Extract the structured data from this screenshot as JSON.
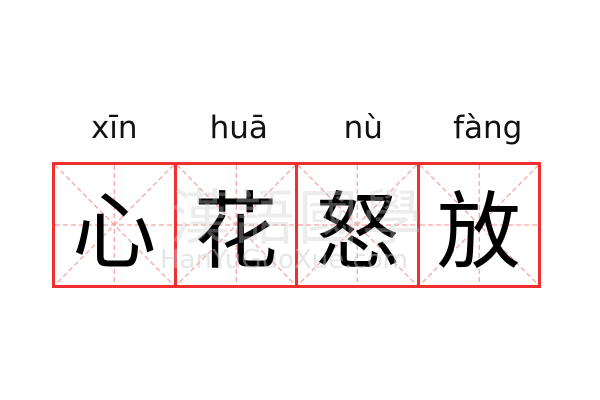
{
  "pinyin": [
    "xīn",
    "huā",
    "nù",
    "fàng"
  ],
  "characters": [
    "心",
    "花",
    "怒",
    "放"
  ],
  "watermark": {
    "chinese": "漢語國學",
    "latin": "HanYuGuoXue.com"
  },
  "colors": {
    "border": "#f03030",
    "guide": "#f9a0a0",
    "text": "#000000"
  }
}
